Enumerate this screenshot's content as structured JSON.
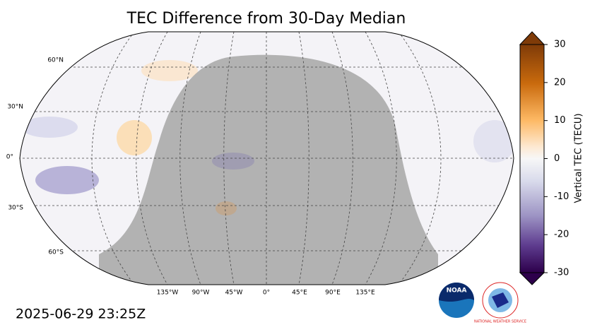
{
  "title": "TEC Difference from 30-Day Median",
  "timestamp": "2025-06-29 23:25Z",
  "map": {
    "lat_labels": [
      "60°N",
      "30°N",
      "0°",
      "30°S",
      "60°S"
    ],
    "lon_labels": [
      "135°W",
      "90°W",
      "45°W",
      "0°",
      "45°E",
      "90°E",
      "135°E"
    ]
  },
  "colorbar": {
    "label": "Vertical TEC (TECU)",
    "lim": [
      -30,
      30
    ],
    "ticks": [
      -30,
      -20,
      -10,
      0,
      10,
      20,
      30
    ]
  },
  "logos": {
    "noaa": "NOAA",
    "nws": "NATIONAL WEATHER SERVICE"
  }
}
